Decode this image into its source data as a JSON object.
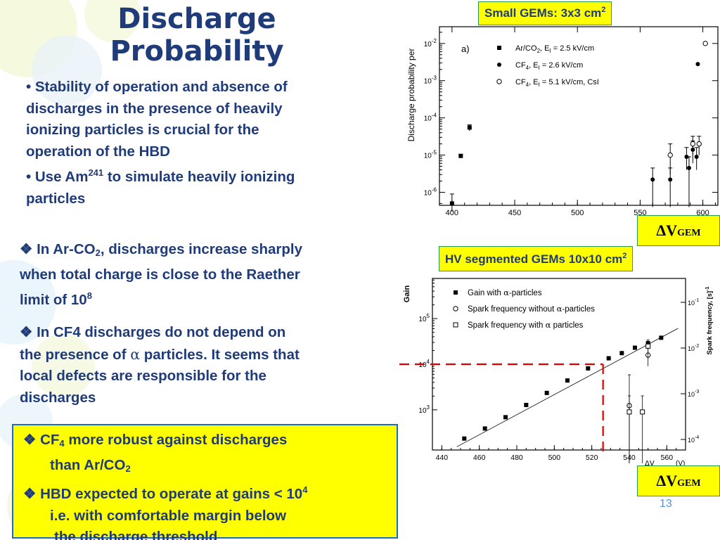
{
  "title": {
    "line1": "Discharge",
    "line2": "Probability"
  },
  "bullets": {
    "b1_line1": "•  Stability of operation and absence of",
    "b1_line2": "discharges in the presence of heavily",
    "b1_line3": "ionizing particles is crucial for the",
    "b1_line4": "operation of the HBD",
    "b2_pre": "• Use Am",
    "b2_sup": "241",
    "b2_post": " to simulate heavily ionizing",
    "b2_line2": "particles"
  },
  "para1": {
    "pre": "❖ In Ar-CO",
    "sub": "2",
    "post": ", discharges increase sharply",
    "line2": "when total charge is close to the Raether",
    "line3_pre": "limit of 10",
    "line3_sup": "8"
  },
  "para2": {
    "line1": "❖ In CF4 discharges do not depend on",
    "line2_pre": "the presence of  ",
    "alpha": "α",
    "line2_post": " particles. It seems that",
    "line3": "local defects are responsible for the",
    "line4": "discharges"
  },
  "summary": {
    "l1_pre": "❖  CF",
    "l1_sub": "4",
    "l1_post": "  more robust against discharges",
    "l2_pre": "than  Ar/CO",
    "l2_sub": "2",
    "l3_pre": "❖  HBD expected to  operate at gains < 10",
    "l3_sup": "4",
    "l4": "i.e. with comfortable margin below",
    "l5": "the  discharge threshold"
  },
  "labels": {
    "small_gems_pre": "Small GEMs: 3x3 cm",
    "small_gems_sup": "2",
    "hv_gems_pre": "HV segmented GEMs 10x10 cm",
    "hv_gems_sup": "2",
    "delta_v": "ΔV",
    "gem_sub": "GEM"
  },
  "page_number": "13",
  "colors": {
    "text_blue": "#1f3b7a",
    "highlight_yellow": "#ffff00",
    "box_border": "#1f6fb0",
    "threshold_red": "#e00000"
  },
  "chart_data": [
    {
      "type": "scatter",
      "panel_label": "a)",
      "ylabel": "Discharge probability per",
      "xlim": [
        390,
        612
      ],
      "ylog": true,
      "ylim_exp": [
        -6.35,
        -1.55
      ],
      "x_ticks": [
        400,
        450,
        500,
        550,
        600
      ],
      "y_tick_exp": [
        -2,
        -3,
        -4,
        -5,
        -6
      ],
      "legend": [
        {
          "marker": "square",
          "pre": "Ar/CO",
          "sub": "2",
          "post": ", E",
          "isub": "I",
          "tail": " = 2.5 kV/cm"
        },
        {
          "marker": "filled-circle",
          "pre": "CF",
          "sub": "4",
          "post": ", E",
          "isub": "I",
          "tail": " = 2.6 kV/cm"
        },
        {
          "marker": "open-circle",
          "pre": "CF",
          "sub": "4",
          "post": ", E",
          "isub": "I",
          "tail": " = 5.1 kV/cm, CsI"
        }
      ],
      "series": [
        {
          "marker": "square",
          "points": [
            {
              "x": 400,
              "y": 5e-07,
              "err_lo": 3e-07,
              "err_hi": 9e-07
            },
            {
              "x": 407,
              "y": 9.5e-06,
              "err_lo": 8.5e-06,
              "err_hi": 1.05e-05
            },
            {
              "x": 414,
              "y": 5.5e-05,
              "err_lo": 4.5e-05,
              "err_hi": 6.5e-05
            }
          ]
        },
        {
          "marker": "filled-circle",
          "points": [
            {
              "x": 560,
              "y": 2.2e-06,
              "err_lo": 4e-07,
              "err_hi": 4.5e-06
            },
            {
              "x": 574,
              "y": 2.2e-06,
              "err_lo": 4e-07,
              "err_hi": 4.5e-06
            },
            {
              "x": 587,
              "y": 9e-06,
              "err_lo": 4e-06,
              "err_hi": 1.6e-05
            },
            {
              "x": 589,
              "y": 4.5e-06,
              "err_lo": 4e-07,
              "err_hi": 9e-06
            },
            {
              "x": 592,
              "y": 1.4e-05,
              "err_lo": 6e-06,
              "err_hi": 2.4e-05
            },
            {
              "x": 595,
              "y": 9e-06,
              "err_lo": 4e-06,
              "err_hi": 1.6e-05
            },
            {
              "x": 596,
              "y": 0.0028
            }
          ]
        },
        {
          "marker": "open-circle",
          "points": [
            {
              "x": 574,
              "y": 1e-05,
              "err_lo": 3e-06,
              "err_hi": 2e-05
            },
            {
              "x": 592,
              "y": 2e-05,
              "err_lo": 1e-05,
              "err_hi": 3.2e-05
            },
            {
              "x": 597,
              "y": 2e-05,
              "err_lo": 1e-05,
              "err_hi": 3.2e-05
            },
            {
              "x": 602,
              "y": 0.01
            }
          ]
        }
      ]
    },
    {
      "type": "scatter",
      "ylabel": "Gain",
      "y2label": "Spark frequency, [s]",
      "y2label_sup": "-1",
      "xlim": [
        435,
        570
      ],
      "ylog": true,
      "ylim_exp": [
        2.12,
        5.88
      ],
      "y2_tick_exp": [
        -1,
        -2,
        -3,
        -4
      ],
      "x_ticks": [
        440,
        460,
        480,
        500,
        520,
        540,
        560
      ],
      "y_tick_exp": [
        5,
        4,
        3
      ],
      "x_axis_partial_label": "ΔV",
      "x_axis_partial_unit": "(V)",
      "legend": [
        {
          "marker": "square",
          "pre": "Gain with ",
          "alpha": "α",
          "post": "-particles"
        },
        {
          "marker": "open-circle",
          "pre": "Spark frequency without ",
          "alpha": "α",
          "post": "-particles"
        },
        {
          "marker": "open-square",
          "pre": "Spark frequency with ",
          "alpha": "α",
          "post": " particles"
        }
      ],
      "gain_points": [
        {
          "x": 452,
          "y": 235
        },
        {
          "x": 463,
          "y": 390
        },
        {
          "x": 474,
          "y": 690
        },
        {
          "x": 485,
          "y": 1280
        },
        {
          "x": 496,
          "y": 2350
        },
        {
          "x": 507,
          "y": 4400
        },
        {
          "x": 518,
          "y": 8100
        },
        {
          "x": 529,
          "y": 13500
        },
        {
          "x": 536,
          "y": 17500
        },
        {
          "x": 543,
          "y": 23000
        },
        {
          "x": 550,
          "y": 29000
        },
        {
          "x": 557,
          "y": 38000
        }
      ],
      "fit_line": [
        {
          "x": 448,
          "y": 155
        },
        {
          "x": 566,
          "y": 61000
        }
      ],
      "threshold": {
        "gain": 10000,
        "x": 526
      },
      "spark_without": [
        {
          "x": 540,
          "y2": 0.00055,
          "err_lo": 3e-05,
          "err_hi": 0.0026
        },
        {
          "x": 550,
          "y2": 0.007,
          "err_lo": 0.004,
          "err_hi": 0.012
        }
      ],
      "spark_with": [
        {
          "x": 540,
          "y2": 0.0004,
          "err_lo": 3e-05,
          "err_hi": 0.0009
        },
        {
          "x": 547,
          "y2": 0.0004,
          "err_lo": 3e-05,
          "err_hi": 0.0009
        },
        {
          "x": 550,
          "y2": 0.011,
          "err_lo": 0.006,
          "err_hi": 0.015
        }
      ]
    }
  ]
}
